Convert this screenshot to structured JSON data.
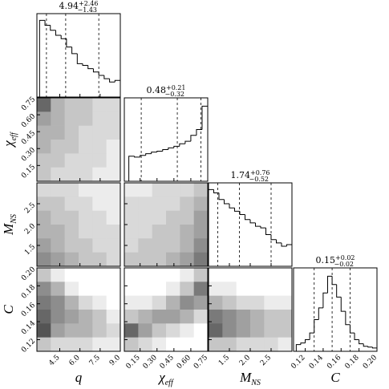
{
  "chart_data": {
    "type": "corner",
    "hist_ylim": [
      0,
      100
    ],
    "variables": [
      {
        "label": {
          "main": "q",
          "sub": null
        },
        "title": {
          "median": "4.94",
          "plus": "+2.46",
          "minus": "−1.43"
        },
        "lim": [
          2.8,
          9.0
        ],
        "ticks": [
          4.5,
          {
            "value": 6,
            "label": "6.0"
          },
          7.5,
          {
            "value": 9,
            "label": "9.0"
          }
        ],
        "quantiles": [
          3.51,
          4.94,
          7.4
        ],
        "bins": [
          3.0,
          3.4,
          3.8,
          4.2,
          4.6,
          5.0,
          5.4,
          5.8,
          6.2,
          6.6,
          7.0,
          7.4,
          7.8,
          8.2,
          8.6,
          9.0
        ],
        "counts": [
          92,
          86,
          80,
          74,
          70,
          60,
          52,
          40,
          38,
          34,
          30,
          26,
          22,
          18,
          20
        ]
      },
      {
        "label": {
          "main": "χ",
          "sub": "eff"
        },
        "title": {
          "median": "0.48",
          "plus": "+0.21",
          "minus": "−0.32"
        },
        "lim": [
          0.01,
          0.75
        ],
        "ticks": [
          0.15,
          {
            "value": 0.3,
            "label": "0.30"
          },
          0.45,
          {
            "value": 0.6,
            "label": "0.60"
          },
          0.75
        ],
        "quantiles": [
          0.16,
          0.48,
          0.69
        ],
        "bins": [
          0.05,
          0.1,
          0.15,
          0.2,
          0.25,
          0.3,
          0.35,
          0.4,
          0.45,
          0.5,
          0.55,
          0.6,
          0.65,
          0.7,
          0.75
        ],
        "counts": [
          30,
          29,
          31,
          33,
          35,
          36,
          38,
          40,
          42,
          45,
          48,
          55,
          62,
          90
        ]
      },
      {
        "label": {
          "main": "M",
          "sub": "NS"
        },
        "title": {
          "median": "1.74",
          "plus": "+0.76",
          "minus": "−0.52"
        },
        "lim": [
          1.0,
          3.0
        ],
        "ticks": [
          1.5,
          {
            "value": 2,
            "label": "2.0"
          },
          2.5
        ],
        "quantiles": [
          1.22,
          1.74,
          2.5
        ],
        "bins": [
          1.0,
          1.125,
          1.25,
          1.375,
          1.5,
          1.625,
          1.75,
          1.875,
          2.0,
          2.125,
          2.25,
          2.375,
          2.5,
          2.625,
          2.75,
          2.875,
          3.0
        ],
        "counts": [
          92,
          88,
          80,
          75,
          70,
          66,
          62,
          56,
          52,
          48,
          46,
          38,
          32,
          28,
          24,
          26
        ]
      },
      {
        "label": {
          "main": "C",
          "sub": null
        },
        "title": {
          "median": "0.15",
          "plus": "+0.02",
          "minus": "−0.02"
        },
        "lim": [
          0.107,
          0.2
        ],
        "ticks": [
          0.12,
          0.14,
          0.16,
          0.18,
          {
            "value": 0.2,
            "label": "0.20"
          }
        ],
        "quantiles": [
          0.13,
          0.15,
          0.17
        ],
        "bins": [
          0.11,
          0.115,
          0.12,
          0.125,
          0.13,
          0.135,
          0.14,
          0.145,
          0.15,
          0.155,
          0.16,
          0.165,
          0.17,
          0.175,
          0.18,
          0.185,
          0.19,
          0.195,
          0.2
        ],
        "counts": [
          8,
          10,
          14,
          22,
          38,
          52,
          70,
          90,
          80,
          65,
          48,
          32,
          22,
          14,
          9,
          6,
          5,
          4
        ]
      }
    ],
    "density_lim": [
      0,
      1
    ],
    "pairs": [
      {
        "density": [
          [
            0.8,
            0.4,
            0.3,
            0.3,
            0.2,
            0.2
          ],
          [
            0.5,
            0.4,
            0.3,
            0.3,
            0.2,
            0.2
          ],
          [
            0.4,
            0.4,
            0.3,
            0.2,
            0.2,
            0.2
          ],
          [
            0.4,
            0.3,
            0.3,
            0.2,
            0.2,
            0.1
          ],
          [
            0.3,
            0.3,
            0.2,
            0.2,
            0.2,
            0.1
          ],
          [
            0.3,
            0.2,
            0.2,
            0.2,
            0.1,
            0.1
          ]
        ]
      },
      {
        "density": [
          [
            0.2,
            0.2,
            0.2,
            0.1,
            0.1,
            0.1
          ],
          [
            0.3,
            0.3,
            0.2,
            0.2,
            0.1,
            0.1
          ],
          [
            0.4,
            0.3,
            0.3,
            0.2,
            0.2,
            0.1
          ],
          [
            0.4,
            0.4,
            0.3,
            0.2,
            0.2,
            0.2
          ],
          [
            0.5,
            0.4,
            0.3,
            0.3,
            0.2,
            0.2
          ],
          [
            0.6,
            0.5,
            0.4,
            0.3,
            0.3,
            0.2
          ]
        ]
      },
      {
        "density": [
          [
            0.1,
            0.1,
            0.2,
            0.2,
            0.2,
            0.3
          ],
          [
            0.2,
            0.2,
            0.2,
            0.2,
            0.3,
            0.4
          ],
          [
            0.2,
            0.2,
            0.2,
            0.3,
            0.3,
            0.5
          ],
          [
            0.2,
            0.2,
            0.3,
            0.3,
            0.4,
            0.5
          ],
          [
            0.2,
            0.3,
            0.3,
            0.3,
            0.4,
            0.6
          ],
          [
            0.3,
            0.3,
            0.3,
            0.4,
            0.5,
            0.7
          ]
        ]
      },
      {
        "density": [
          [
            0.3,
            0.1,
            0.0,
            0.0,
            0.0,
            0.0
          ],
          [
            0.6,
            0.4,
            0.1,
            0.0,
            0.0,
            0.0
          ],
          [
            0.7,
            0.6,
            0.4,
            0.2,
            0.1,
            0.0
          ],
          [
            0.8,
            0.6,
            0.5,
            0.4,
            0.3,
            0.1
          ],
          [
            0.9,
            0.5,
            0.4,
            0.4,
            0.3,
            0.2
          ],
          [
            0.3,
            0.2,
            0.2,
            0.2,
            0.1,
            0.1
          ]
        ]
      },
      {
        "density": [
          [
            0.0,
            0.0,
            0.0,
            0.0,
            0.1,
            0.3
          ],
          [
            0.0,
            0.0,
            0.0,
            0.1,
            0.3,
            0.7
          ],
          [
            0.1,
            0.1,
            0.2,
            0.4,
            0.6,
            0.5
          ],
          [
            0.3,
            0.4,
            0.5,
            0.5,
            0.4,
            0.2
          ],
          [
            0.8,
            0.5,
            0.3,
            0.2,
            0.1,
            0.0
          ],
          [
            0.3,
            0.2,
            0.1,
            0.0,
            0.0,
            0.0
          ]
        ]
      },
      {
        "density": [
          [
            0.0,
            0.0,
            0.0,
            0.0,
            0.0,
            0.0
          ],
          [
            0.1,
            0.1,
            0.0,
            0.0,
            0.0,
            0.0
          ],
          [
            0.4,
            0.3,
            0.2,
            0.2,
            0.1,
            0.1
          ],
          [
            0.7,
            0.6,
            0.5,
            0.4,
            0.3,
            0.3
          ],
          [
            0.8,
            0.6,
            0.5,
            0.4,
            0.3,
            0.3
          ],
          [
            0.3,
            0.3,
            0.2,
            0.2,
            0.2,
            0.1
          ]
        ]
      }
    ]
  }
}
